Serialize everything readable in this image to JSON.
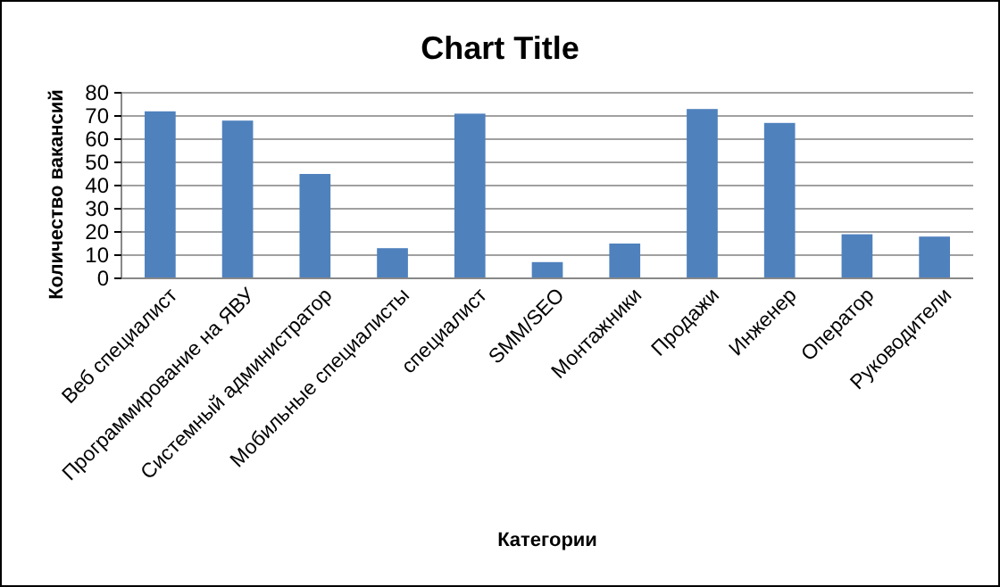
{
  "chart_data": {
    "type": "bar",
    "title": "Chart Title",
    "xlabel": "Категории",
    "ylabel": "Количество вакансий",
    "categories": [
      "Веб специалист",
      "Программирование на ЯВУ",
      "Системный администратор",
      "Мобильные специалисты",
      "специалист",
      "SMM/SEO",
      "Монтажники",
      "Продажи",
      "Инженер",
      "Оператор",
      "Руководители"
    ],
    "values": [
      72,
      68,
      45,
      13,
      71,
      7,
      15,
      73,
      67,
      19,
      18
    ],
    "color": "#4f81bd",
    "ylim": [
      0,
      80
    ],
    "yticks": [
      0,
      10,
      20,
      30,
      40,
      50,
      60,
      70,
      80
    ],
    "grid": "y"
  }
}
